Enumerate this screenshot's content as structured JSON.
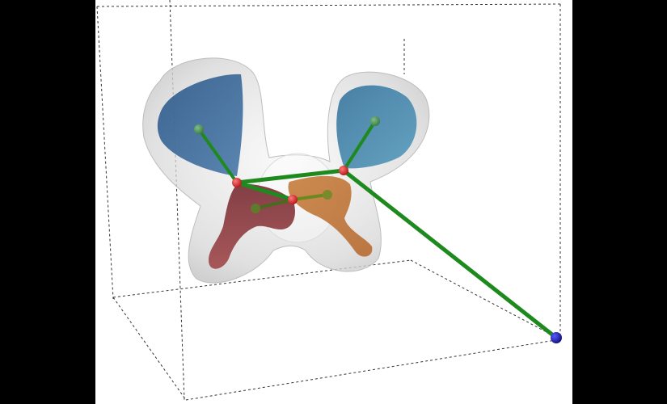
{
  "scene": {
    "type": "3d-molecular-visualization",
    "background_color": "#000000",
    "canvas_color": "#ffffff",
    "bounding_box_color": "#333333",
    "envelope_color": "#d9d9d9",
    "lobes": [
      {
        "name": "blue-lobe-left",
        "color": "#3d6794"
      },
      {
        "name": "blue-lobe-right",
        "color": "#4a86a8"
      },
      {
        "name": "red-lobe",
        "color": "#8a3a3e"
      },
      {
        "name": "orange-lobe",
        "color": "#c17a3e"
      }
    ],
    "atoms": [
      {
        "name": "red-atom",
        "color": "#cc2222",
        "count": 3
      },
      {
        "name": "green-atom",
        "color": "#4a8a55",
        "count": 4
      },
      {
        "name": "blue-atom",
        "color": "#1a1aa0",
        "count": 1
      }
    ],
    "bond_color": "#1e8a1e"
  }
}
